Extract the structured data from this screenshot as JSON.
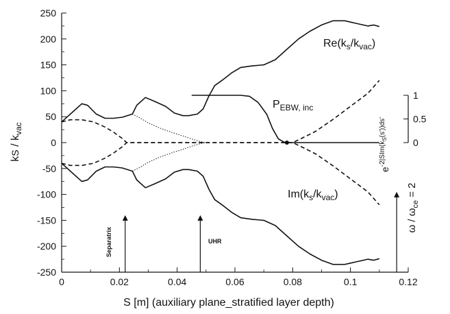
{
  "chart_data": {
    "type": "line",
    "xlabel": "S [m] (auxiliary plane_stratified layer depth)",
    "ylabel": "kS / kvac",
    "xlim": [
      0,
      0.12
    ],
    "ylim": [
      -250,
      250
    ],
    "x_ticks": [
      "0",
      "0.02",
      "0.04",
      "0.06",
      "0.08",
      "0.1",
      "0.12"
    ],
    "y_ticks": [
      "250",
      "200",
      "150",
      "100",
      "50",
      "0",
      "-50",
      "-100",
      "-150",
      "-200",
      "-250"
    ],
    "right_axis": {
      "label": "e-2|SIm(kS(s'))ds'",
      "range": [
        0,
        1
      ],
      "ticks": [
        "0",
        "0.5",
        "1"
      ]
    },
    "annotations": {
      "re": "Re(kS/kvac)",
      "im": "Im(kS/kvac)",
      "p_ebw": "PEBW, inc",
      "separatrix": "Separatrix",
      "uhr": "UHR",
      "omega": "ω / ωce = 2"
    },
    "series": [
      {
        "name": "Re(kS/kvac)",
        "style": "solid",
        "points": [
          [
            0,
            40
          ],
          [
            0.004,
            60
          ],
          [
            0.007,
            75
          ],
          [
            0.009,
            72
          ],
          [
            0.012,
            55
          ],
          [
            0.015,
            47
          ],
          [
            0.018,
            47
          ],
          [
            0.021,
            49
          ],
          [
            0.0245,
            55
          ],
          [
            0.026,
            72
          ],
          [
            0.029,
            87
          ],
          [
            0.032,
            80
          ],
          [
            0.036,
            70
          ],
          [
            0.039,
            57
          ],
          [
            0.042,
            52
          ],
          [
            0.044,
            52
          ],
          [
            0.047,
            55
          ],
          [
            0.049,
            65
          ],
          [
            0.051,
            90
          ],
          [
            0.053,
            110
          ],
          [
            0.056,
            122
          ],
          [
            0.059,
            135
          ],
          [
            0.062,
            145
          ],
          [
            0.066,
            148
          ],
          [
            0.07,
            150
          ],
          [
            0.074,
            160
          ],
          [
            0.078,
            180
          ],
          [
            0.082,
            200
          ],
          [
            0.086,
            215
          ],
          [
            0.09,
            227
          ],
          [
            0.094,
            235
          ],
          [
            0.098,
            235
          ],
          [
            0.102,
            230
          ],
          [
            0.106,
            225
          ],
          [
            0.108,
            227
          ],
          [
            0.11,
            224
          ]
        ]
      },
      {
        "name": "Im(kS/kvac)",
        "style": "solid",
        "points": [
          [
            0,
            -40
          ],
          [
            0.004,
            -60
          ],
          [
            0.007,
            -75
          ],
          [
            0.009,
            -72
          ],
          [
            0.012,
            -55
          ],
          [
            0.015,
            -47
          ],
          [
            0.018,
            -47
          ],
          [
            0.021,
            -49
          ],
          [
            0.0245,
            -55
          ],
          [
            0.026,
            -72
          ],
          [
            0.029,
            -87
          ],
          [
            0.032,
            -80
          ],
          [
            0.036,
            -70
          ],
          [
            0.039,
            -57
          ],
          [
            0.042,
            -52
          ],
          [
            0.044,
            -52
          ],
          [
            0.047,
            -55
          ],
          [
            0.049,
            -65
          ],
          [
            0.051,
            -90
          ],
          [
            0.053,
            -110
          ],
          [
            0.056,
            -122
          ],
          [
            0.059,
            -135
          ],
          [
            0.062,
            -145
          ],
          [
            0.066,
            -148
          ],
          [
            0.07,
            -150
          ],
          [
            0.074,
            -160
          ],
          [
            0.078,
            -180
          ],
          [
            0.082,
            -200
          ],
          [
            0.086,
            -215
          ],
          [
            0.09,
            -227
          ],
          [
            0.094,
            -235
          ],
          [
            0.098,
            -235
          ],
          [
            0.102,
            -230
          ],
          [
            0.106,
            -225
          ],
          [
            0.108,
            -227
          ],
          [
            0.11,
            -224
          ]
        ]
      },
      {
        "name": "Re dashed branch",
        "style": "dashed",
        "points": [
          [
            0,
            40
          ],
          [
            0.003,
            44
          ],
          [
            0.007,
            44
          ],
          [
            0.011,
            40
          ],
          [
            0.015,
            30
          ],
          [
            0.018,
            20
          ],
          [
            0.021,
            8
          ],
          [
            0.0225,
            0
          ],
          [
            0.025,
            0
          ],
          [
            0.03,
            0
          ],
          [
            0.04,
            0
          ],
          [
            0.05,
            0
          ],
          [
            0.06,
            0
          ],
          [
            0.07,
            0
          ],
          [
            0.08,
            0
          ],
          [
            0.083,
            8
          ],
          [
            0.088,
            22
          ],
          [
            0.094,
            45
          ],
          [
            0.1,
            70
          ],
          [
            0.106,
            95
          ],
          [
            0.11,
            120
          ]
        ]
      },
      {
        "name": "Im dashed branch",
        "style": "dashed",
        "points": [
          [
            0,
            -40
          ],
          [
            0.003,
            -44
          ],
          [
            0.007,
            -44
          ],
          [
            0.011,
            -40
          ],
          [
            0.015,
            -30
          ],
          [
            0.018,
            -20
          ],
          [
            0.021,
            -8
          ],
          [
            0.0225,
            0
          ],
          [
            0.08,
            0
          ],
          [
            0.083,
            -8
          ],
          [
            0.088,
            -22
          ],
          [
            0.094,
            -45
          ],
          [
            0.1,
            -70
          ],
          [
            0.106,
            -95
          ],
          [
            0.11,
            -120
          ]
        ]
      },
      {
        "name": "dotted branch upper",
        "style": "dotted",
        "points": [
          [
            0.0245,
            55
          ],
          [
            0.027,
            48
          ],
          [
            0.03,
            38
          ],
          [
            0.034,
            28
          ],
          [
            0.038,
            20
          ],
          [
            0.042,
            13
          ],
          [
            0.045,
            7
          ],
          [
            0.048,
            2
          ],
          [
            0.05,
            0
          ]
        ]
      },
      {
        "name": "dotted branch lower",
        "style": "dotted",
        "points": [
          [
            0.0245,
            -55
          ],
          [
            0.027,
            -48
          ],
          [
            0.03,
            -38
          ],
          [
            0.034,
            -28
          ],
          [
            0.038,
            -20
          ],
          [
            0.042,
            -13
          ],
          [
            0.045,
            -7
          ],
          [
            0.048,
            -2
          ],
          [
            0.05,
            0
          ]
        ]
      },
      {
        "name": "PEBW, inc",
        "style": "solid",
        "axis": "right",
        "points": [
          [
            0.045,
            1
          ],
          [
            0.055,
            1
          ],
          [
            0.062,
            1
          ],
          [
            0.065,
            0.98
          ],
          [
            0.068,
            0.85
          ],
          [
            0.071,
            0.6
          ],
          [
            0.073,
            0.3
          ],
          [
            0.075,
            0.08
          ],
          [
            0.077,
            0.01
          ],
          [
            0.079,
            0
          ],
          [
            0.11,
            0
          ]
        ]
      }
    ],
    "markers": [
      {
        "label": "Separatrix",
        "x": 0.022,
        "y_from": -250,
        "y_to": -140
      },
      {
        "label": "UHR",
        "x": 0.048,
        "y_from": -250,
        "y_to": -140
      },
      {
        "label": "ω / ωce = 2",
        "x": 0.116,
        "y_from": -250,
        "y_to": -95
      }
    ]
  }
}
